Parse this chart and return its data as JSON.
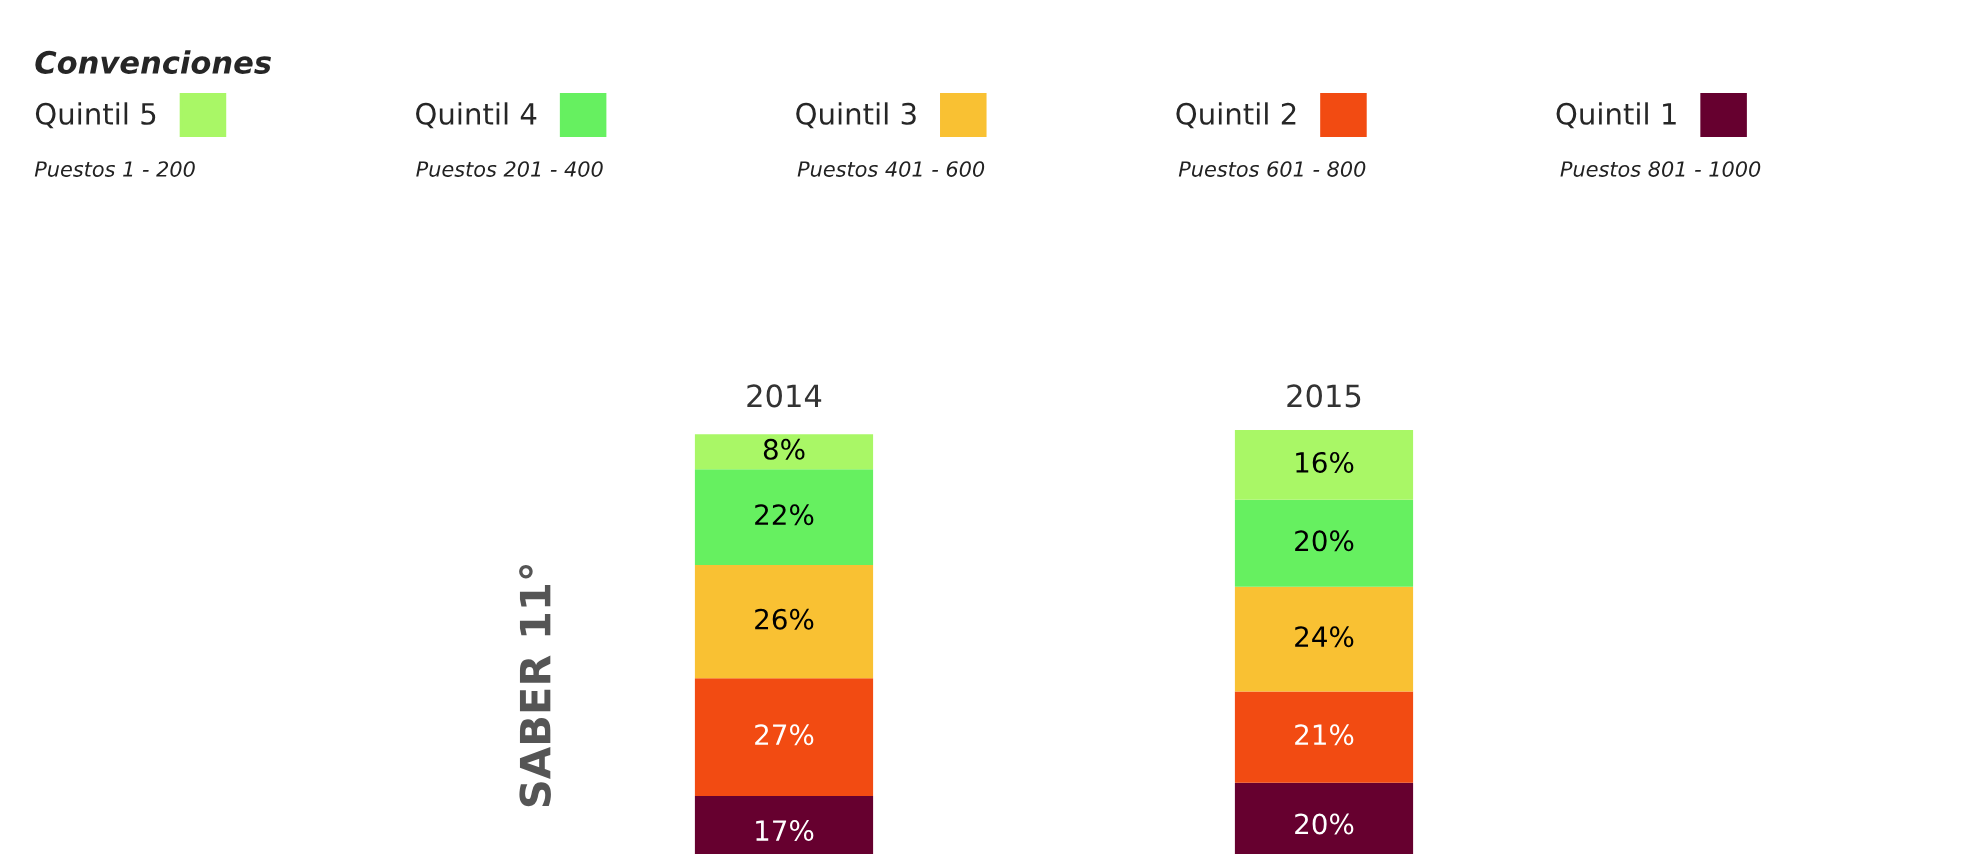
{
  "chart_data": {
    "type": "bar",
    "stacked": true,
    "legend_title": "Convenciones",
    "ylabel": "SABER 11°",
    "categories": [
      "2014",
      "2015"
    ],
    "legend": "top left",
    "series": [
      {
        "name": "Quintil 1",
        "color": "#66002f",
        "values": [
          17,
          20
        ],
        "value_labels": [
          "17%",
          "20%"
        ]
      },
      {
        "name": "Quintil 2",
        "color": "#f24b12",
        "values": [
          27,
          21
        ],
        "value_labels": [
          "27%",
          "21%"
        ]
      },
      {
        "name": "Quintil 3",
        "color": "#f9c133",
        "values": [
          26,
          24
        ],
        "value_labels": [
          "26%",
          "24%"
        ]
      },
      {
        "name": "Quintil 4",
        "color": "#66f060",
        "values": [
          22,
          20
        ],
        "value_labels": [
          "22%",
          "20%"
        ]
      },
      {
        "name": "Quintil 5",
        "color": "#a9f766",
        "values": [
          8,
          16
        ],
        "value_labels": [
          "8%",
          "16%"
        ]
      }
    ],
    "annotations": [
      "Puestos 801 - 1000",
      "Puestos 601 - 800",
      "Puestos 401 - 600",
      "Puestos 201 - 400",
      "Puestos 1 - 200"
    ]
  }
}
